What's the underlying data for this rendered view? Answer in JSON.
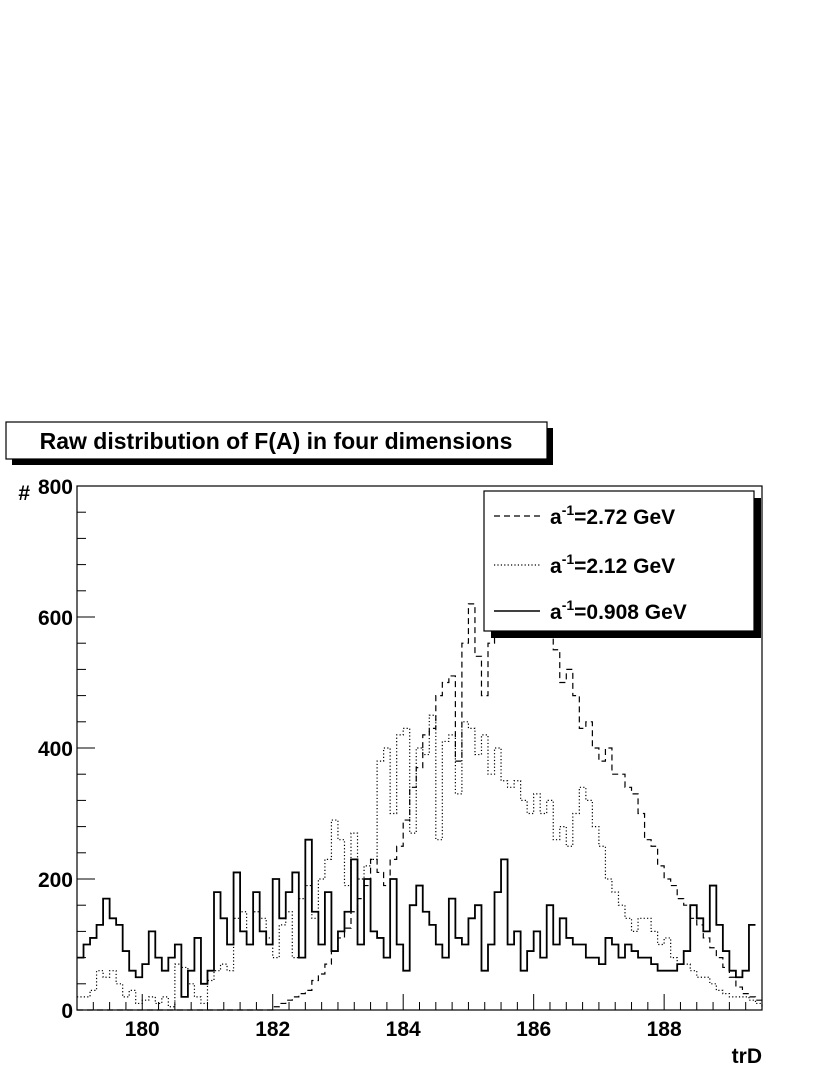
{
  "chart_data": {
    "type": "histogram",
    "title": "Raw distribution of F(A) in four dimensions",
    "xlabel": "trD",
    "ylabel": "#",
    "xlim": [
      179.0,
      189.5
    ],
    "ylim": [
      0,
      800
    ],
    "x_ticks": [
      "180",
      "182",
      "184",
      "186",
      "188"
    ],
    "y_ticks": [
      "0",
      "200",
      "400",
      "600",
      "800"
    ],
    "x_tick_values": [
      180,
      182,
      184,
      186,
      188
    ],
    "y_tick_values": [
      0,
      200,
      400,
      600,
      800
    ],
    "bin_start": 179.0,
    "bin_width": 0.1,
    "legend_position": "top-right",
    "series": [
      {
        "label_base": "a",
        "label_sup": "-1",
        "label_rest": "=2.72 GeV",
        "style": "dashed",
        "values": [
          0,
          0,
          0,
          0,
          0,
          0,
          0,
          0,
          0,
          0,
          0,
          0,
          0,
          0,
          0,
          0,
          0,
          0,
          0,
          0,
          0,
          0,
          0,
          0,
          0,
          0,
          0,
          0,
          0,
          0,
          5,
          10,
          15,
          20,
          25,
          30,
          45,
          55,
          70,
          90,
          110,
          125,
          150,
          170,
          190,
          230,
          210,
          190,
          230,
          250,
          290,
          340,
          370,
          420,
          430,
          480,
          500,
          510,
          380,
          560,
          620,
          540,
          480,
          560,
          650,
          720,
          640,
          760,
          750,
          740,
          680,
          740,
          600,
          550,
          500,
          520,
          480,
          430,
          440,
          400,
          380,
          400,
          360,
          360,
          340,
          330,
          300,
          260,
          250,
          220,
          200,
          190,
          170,
          160,
          140,
          130,
          110,
          95,
          80,
          65,
          50,
          35,
          25,
          20,
          15,
          12,
          10,
          8,
          6,
          5
        ]
      },
      {
        "label_base": "a",
        "label_sup": "-1",
        "label_rest": "=2.12 GeV",
        "style": "dotted",
        "values": [
          20,
          20,
          30,
          60,
          50,
          60,
          40,
          20,
          30,
          10,
          15,
          20,
          10,
          20,
          5,
          70,
          65,
          40,
          20,
          10,
          45,
          60,
          70,
          60,
          140,
          150,
          100,
          150,
          140,
          110,
          80,
          130,
          150,
          80,
          170,
          190,
          140,
          200,
          230,
          290,
          260,
          190,
          270,
          200,
          220,
          230,
          380,
          400,
          300,
          420,
          430,
          270,
          400,
          390,
          450,
          260,
          410,
          420,
          330,
          440,
          430,
          390,
          420,
          360,
          400,
          350,
          340,
          350,
          320,
          300,
          330,
          300,
          320,
          260,
          280,
          250,
          300,
          340,
          320,
          280,
          250,
          200,
          180,
          160,
          140,
          120,
          140,
          140,
          120,
          100,
          110,
          80,
          70,
          70,
          60,
          50,
          50,
          40,
          30,
          25,
          20,
          20,
          20,
          15,
          10,
          10
        ]
      },
      {
        "label_base": "a",
        "label_sup": "-1",
        "label_rest": "=0.908 GeV",
        "style": "solid",
        "values": [
          80,
          100,
          110,
          130,
          170,
          140,
          130,
          90,
          60,
          50,
          70,
          120,
          80,
          60,
          80,
          100,
          20,
          60,
          110,
          40,
          60,
          180,
          140,
          100,
          210,
          120,
          100,
          180,
          120,
          100,
          200,
          140,
          180,
          210,
          80,
          260,
          150,
          100,
          180,
          90,
          120,
          150,
          230,
          100,
          200,
          120,
          110,
          80,
          200,
          100,
          60,
          160,
          190,
          150,
          130,
          100,
          80,
          170,
          110,
          100,
          140,
          160,
          60,
          100,
          180,
          230,
          100,
          120,
          60,
          90,
          120,
          80,
          160,
          100,
          140,
          110,
          100,
          100,
          80,
          80,
          70,
          110,
          100,
          80,
          100,
          90,
          80,
          80,
          70,
          60,
          60,
          60,
          70,
          90,
          160,
          140,
          120,
          190,
          130,
          90,
          60,
          50,
          60,
          130
        ]
      }
    ]
  }
}
